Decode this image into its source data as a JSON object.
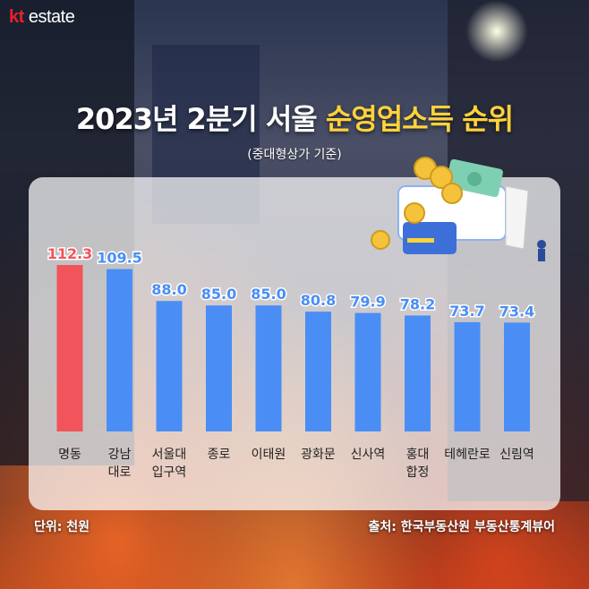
{
  "brand": {
    "kt": "kt",
    "estate": " estate"
  },
  "title": {
    "main": "2023년 2분기 서울 ",
    "highlight": "순영업소득 순위"
  },
  "subtitle": "(중대형상가 기준)",
  "footer": {
    "unit": "단위: 천원",
    "source": "출처: 한국부동산원 부동산통계뷰어"
  },
  "colors": {
    "top_bar": "#f2545b",
    "bar": "#4a8ef5",
    "top_label": "#f2545b",
    "label": "#4a8ef5"
  },
  "chart_data": {
    "type": "bar",
    "categories": [
      [
        "명동"
      ],
      [
        "강남",
        "대로"
      ],
      [
        "서울대",
        "입구역"
      ],
      [
        "종로"
      ],
      [
        "이태원"
      ],
      [
        "광화문"
      ],
      [
        "신사역"
      ],
      [
        "홍대",
        "합정"
      ],
      [
        "테헤란로"
      ],
      [
        "신림역"
      ]
    ],
    "values": [
      112.3,
      109.5,
      88.0,
      85.0,
      85.0,
      80.8,
      79.9,
      78.2,
      73.7,
      73.4
    ],
    "value_labels": [
      "112.3",
      "109.5",
      "88.0",
      "85.0",
      "85.0",
      "80.8",
      "79.9",
      "78.2",
      "73.7",
      "73.4"
    ],
    "highlight_index": 0,
    "ylim": [
      0,
      130
    ],
    "grid": false,
    "legend": "none"
  }
}
